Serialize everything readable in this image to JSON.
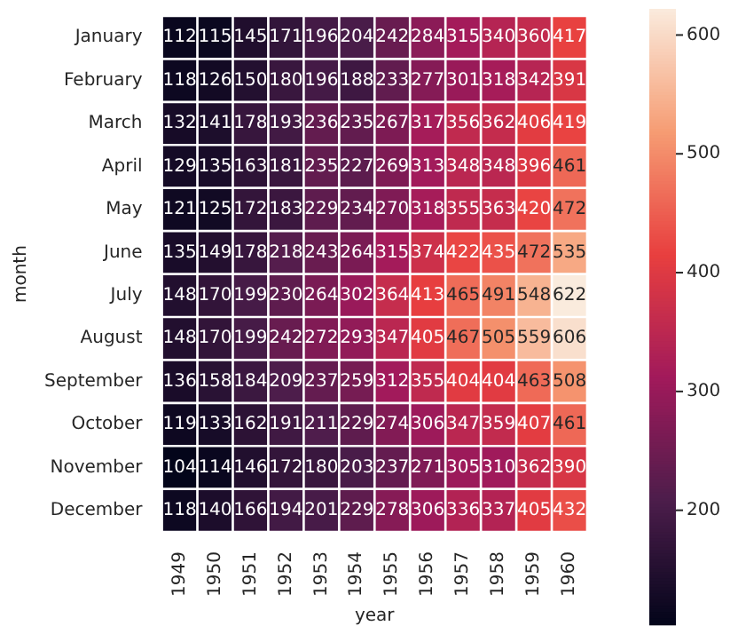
{
  "chart_data": {
    "type": "heatmap",
    "xlabel": "year",
    "ylabel": "month",
    "categories": [
      "1949",
      "1950",
      "1951",
      "1952",
      "1953",
      "1954",
      "1955",
      "1956",
      "1957",
      "1958",
      "1959",
      "1960"
    ],
    "y_categories": [
      "January",
      "February",
      "March",
      "April",
      "May",
      "June",
      "July",
      "August",
      "September",
      "October",
      "November",
      "December"
    ],
    "cells": [
      [
        112,
        115,
        145,
        171,
        196,
        204,
        242,
        284,
        315,
        340,
        360,
        417
      ],
      [
        118,
        126,
        150,
        180,
        196,
        188,
        233,
        277,
        301,
        318,
        342,
        391
      ],
      [
        132,
        141,
        178,
        193,
        236,
        235,
        267,
        317,
        356,
        362,
        406,
        419
      ],
      [
        129,
        135,
        163,
        181,
        235,
        227,
        269,
        313,
        348,
        348,
        396,
        461
      ],
      [
        121,
        125,
        172,
        183,
        229,
        234,
        270,
        318,
        355,
        363,
        420,
        472
      ],
      [
        135,
        149,
        178,
        218,
        243,
        264,
        315,
        374,
        422,
        435,
        472,
        535
      ],
      [
        148,
        170,
        199,
        230,
        264,
        302,
        364,
        413,
        465,
        491,
        548,
        622
      ],
      [
        148,
        170,
        199,
        242,
        272,
        293,
        347,
        405,
        467,
        505,
        559,
        606
      ],
      [
        136,
        158,
        184,
        209,
        237,
        259,
        312,
        355,
        404,
        404,
        463,
        508
      ],
      [
        119,
        133,
        162,
        191,
        211,
        229,
        274,
        306,
        347,
        359,
        407,
        461
      ],
      [
        104,
        114,
        146,
        172,
        180,
        203,
        237,
        271,
        305,
        310,
        362,
        390
      ],
      [
        118,
        140,
        166,
        194,
        201,
        229,
        278,
        306,
        336,
        337,
        405,
        432
      ]
    ],
    "clim": [
      104,
      622
    ],
    "cticks": [
      200,
      300,
      400,
      500,
      600
    ],
    "data_labels": true
  }
}
